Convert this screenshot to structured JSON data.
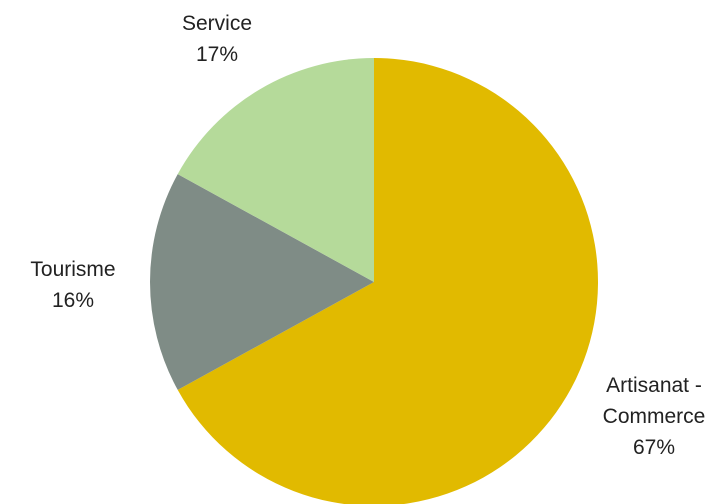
{
  "chart_data": {
    "type": "pie",
    "title": "",
    "slices": [
      {
        "name": "Artisanat - Commerce",
        "value": 67,
        "label_lines": [
          "Artisanat -",
          "Commerce",
          "67%"
        ],
        "color": "#E1BA00"
      },
      {
        "name": "Tourisme",
        "value": 16,
        "label_lines": [
          "Tourisme",
          "16%"
        ],
        "color": "#7F8C86"
      },
      {
        "name": "Service",
        "value": 17,
        "label_lines": [
          "Service",
          "17%"
        ],
        "color": "#B5DA9A"
      }
    ],
    "start": "12 o'clock",
    "direction": "clockwise",
    "legend": "none"
  }
}
